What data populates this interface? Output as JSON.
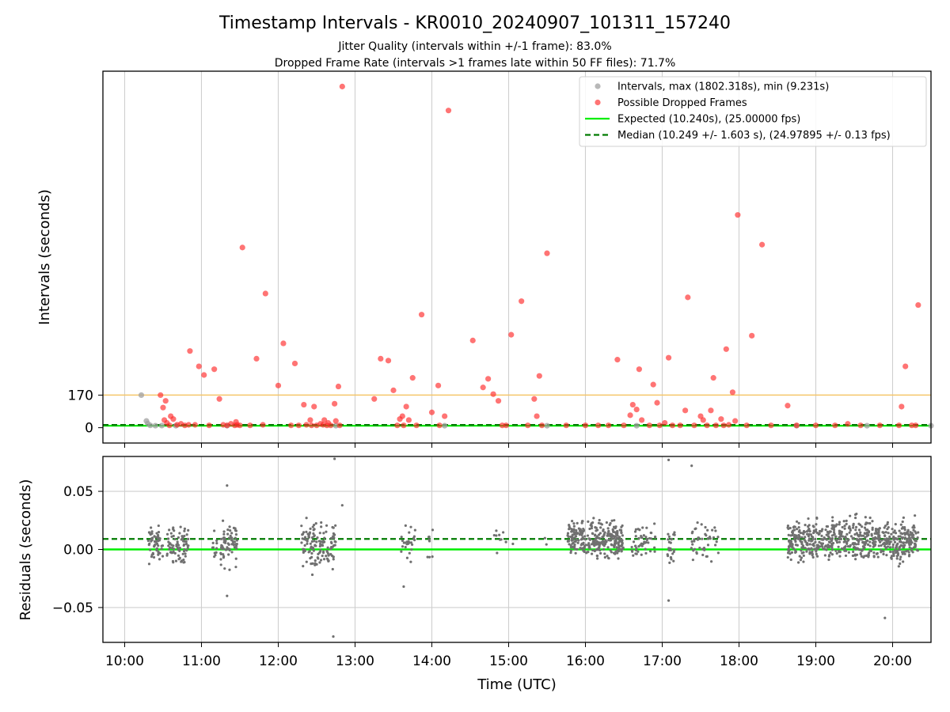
{
  "figure": {
    "title": "Timestamp Intervals - KR0010_20240907_101311_157240",
    "subtitle_1": "Jitter Quality (intervals within +/-1 frame): 83.0%",
    "subtitle_2": "Dropped Frame Rate (intervals >1 frames late within 50 FF files): 71.7%",
    "xlabel": "Time (UTC)"
  },
  "colors": {
    "intervals": "#a0a0a0",
    "dropped": "#ff2a2a",
    "expected": "#00ee00",
    "median": "#007a00",
    "threshold": "#f5c66a",
    "residual": "#707070",
    "grid": "#cfcfcf"
  },
  "chart_data": [
    {
      "type": "scatter",
      "ylabel": "Intervals (seconds)",
      "ytick_labels": [
        "0",
        "170"
      ],
      "yticks": [
        0,
        170
      ],
      "ylim": [
        -80,
        1860
      ],
      "xlim": [
        "09:43",
        "20:30"
      ],
      "xticks": [
        "10:00",
        "11:00",
        "12:00",
        "13:00",
        "14:00",
        "15:00",
        "16:00",
        "17:00",
        "18:00",
        "19:00",
        "20:00"
      ],
      "grid": "x",
      "legend_position": "upper-right",
      "legend": [
        "Intervals, max (1802.318s), min (9.231s)",
        "Possible Dropped Frames",
        "Expected (10.240s), (25.00000 fps)",
        "Median (10.249 +/- 1.603 s), (24.97895 +/- 0.13 fps)"
      ],
      "expected_value": 10.24,
      "median_value": 10.249,
      "threshold_value": 170,
      "series": [
        {
          "name": "Intervals, max (1802.318s), min (9.231s)",
          "points": [
            [
              "10:13",
              170
            ],
            [
              "10:17",
              35
            ],
            [
              "10:18",
              22
            ],
            [
              "10:20",
              12
            ],
            [
              "10:24",
              10.5
            ],
            [
              "10:29",
              11
            ],
            [
              "10:40",
              10.4
            ],
            [
              "11:20",
              10.3
            ],
            [
              "12:45",
              10.5
            ],
            [
              "14:10",
              10.3
            ],
            [
              "15:30",
              10.4
            ],
            [
              "16:40",
              10.3
            ],
            [
              "18:45",
              10.3
            ],
            [
              "19:40",
              10.4
            ],
            [
              "20:30",
              10.2
            ]
          ]
        },
        {
          "name": "Possible Dropped Frames",
          "points": [
            [
              "10:28",
              170
            ],
            [
              "10:30",
              105
            ],
            [
              "10:31",
              40
            ],
            [
              "10:32",
              140
            ],
            [
              "10:33",
              25
            ],
            [
              "10:35",
              12
            ],
            [
              "10:36",
              60
            ],
            [
              "10:38",
              45
            ],
            [
              "10:41",
              15
            ],
            [
              "10:44",
              20
            ],
            [
              "10:47",
              12
            ],
            [
              "10:50",
              15
            ],
            [
              "10:51",
              400
            ],
            [
              "10:55",
              15
            ],
            [
              "10:58",
              320
            ],
            [
              "11:02",
              275
            ],
            [
              "11:06",
              12
            ],
            [
              "11:10",
              305
            ],
            [
              "11:14",
              150
            ],
            [
              "11:17",
              15
            ],
            [
              "11:20",
              12
            ],
            [
              "11:23",
              20
            ],
            [
              "11:26",
              12
            ],
            [
              "11:28",
              15
            ],
            [
              "11:27",
              30
            ],
            [
              "11:30",
              12
            ],
            [
              "11:32",
              940
            ],
            [
              "11:38",
              12
            ],
            [
              "11:43",
              360
            ],
            [
              "11:50",
              700
            ],
            [
              "11:48",
              15
            ],
            [
              "12:00",
              220
            ],
            [
              "12:04",
              440
            ],
            [
              "12:10",
              12
            ],
            [
              "12:13",
              335
            ],
            [
              "12:16",
              12
            ],
            [
              "12:20",
              120
            ],
            [
              "12:22",
              15
            ],
            [
              "12:25",
              40
            ],
            [
              "12:26",
              12
            ],
            [
              "12:28",
              110
            ],
            [
              "12:30",
              12
            ],
            [
              "12:33",
              20
            ],
            [
              "12:35",
              15
            ],
            [
              "12:36",
              40
            ],
            [
              "12:38",
              12
            ],
            [
              "12:39",
              25
            ],
            [
              "12:41",
              12
            ],
            [
              "12:44",
              125
            ],
            [
              "12:45",
              35
            ],
            [
              "12:47",
              215
            ],
            [
              "12:48",
              12
            ],
            [
              "12:50",
              1780
            ],
            [
              "13:15",
              150
            ],
            [
              "13:20",
              360
            ],
            [
              "13:26",
              350
            ],
            [
              "13:30",
              195
            ],
            [
              "13:33",
              12
            ],
            [
              "13:35",
              45
            ],
            [
              "13:37",
              60
            ],
            [
              "13:38",
              12
            ],
            [
              "13:40",
              110
            ],
            [
              "13:42",
              40
            ],
            [
              "13:45",
              260
            ],
            [
              "13:48",
              12
            ],
            [
              "13:52",
              590
            ],
            [
              "14:00",
              80
            ],
            [
              "14:05",
              220
            ],
            [
              "14:06",
              12
            ],
            [
              "14:10",
              60
            ],
            [
              "14:13",
              1655
            ],
            [
              "14:32",
              455
            ],
            [
              "14:40",
              210
            ],
            [
              "14:44",
              255
            ],
            [
              "14:48",
              175
            ],
            [
              "14:52",
              140
            ],
            [
              "14:55",
              12
            ],
            [
              "14:58",
              12
            ],
            [
              "15:02",
              485
            ],
            [
              "15:10",
              660
            ],
            [
              "15:15",
              12
            ],
            [
              "15:20",
              150
            ],
            [
              "15:22",
              60
            ],
            [
              "15:24",
              270
            ],
            [
              "15:26",
              12
            ],
            [
              "15:30",
              910
            ],
            [
              "15:45",
              12
            ],
            [
              "16:00",
              12
            ],
            [
              "16:10",
              12
            ],
            [
              "16:18",
              12
            ],
            [
              "16:25",
              355
            ],
            [
              "16:30",
              12
            ],
            [
              "16:35",
              65
            ],
            [
              "16:37",
              120
            ],
            [
              "16:40",
              95
            ],
            [
              "16:42",
              305
            ],
            [
              "16:44",
              40
            ],
            [
              "16:50",
              12
            ],
            [
              "16:53",
              225
            ],
            [
              "16:56",
              130
            ],
            [
              "16:58",
              12
            ],
            [
              "17:02",
              25
            ],
            [
              "17:05",
              365
            ],
            [
              "17:08",
              12
            ],
            [
              "17:14",
              12
            ],
            [
              "17:18",
              90
            ],
            [
              "17:20",
              680
            ],
            [
              "17:25",
              12
            ],
            [
              "17:30",
              60
            ],
            [
              "17:32",
              40
            ],
            [
              "17:35",
              12
            ],
            [
              "17:38",
              90
            ],
            [
              "17:40",
              260
            ],
            [
              "17:42",
              12
            ],
            [
              "17:46",
              45
            ],
            [
              "17:48",
              12
            ],
            [
              "17:50",
              410
            ],
            [
              "17:52",
              15
            ],
            [
              "17:55",
              185
            ],
            [
              "17:57",
              35
            ],
            [
              "17:59",
              1110
            ],
            [
              "18:06",
              12
            ],
            [
              "18:10",
              480
            ],
            [
              "18:18",
              955
            ],
            [
              "18:25",
              12
            ],
            [
              "18:38",
              115
            ],
            [
              "18:45",
              12
            ],
            [
              "19:00",
              12
            ],
            [
              "19:15",
              12
            ],
            [
              "19:25",
              20
            ],
            [
              "19:35",
              12
            ],
            [
              "19:50",
              12
            ],
            [
              "20:05",
              12
            ],
            [
              "20:07",
              110
            ],
            [
              "20:10",
              320
            ],
            [
              "20:15",
              12
            ],
            [
              "20:18",
              12
            ],
            [
              "20:20",
              640
            ]
          ]
        }
      ]
    },
    {
      "type": "scatter",
      "ylabel": "Residuals (seconds)",
      "ytick_labels": [
        "−0.05",
        "0.00",
        "0.05"
      ],
      "yticks": [
        -0.05,
        0.0,
        0.05
      ],
      "ylim": [
        -0.08,
        0.08
      ],
      "xlim": [
        "09:43",
        "20:30"
      ],
      "xticks": [
        "10:00",
        "11:00",
        "12:00",
        "13:00",
        "14:00",
        "15:00",
        "16:00",
        "17:00",
        "18:00",
        "19:00",
        "20:00"
      ],
      "xtick_labels": [
        "10:00",
        "11:00",
        "12:00",
        "13:00",
        "14:00",
        "15:00",
        "16:00",
        "17:00",
        "18:00",
        "19:00",
        "20:00"
      ],
      "grid": "both",
      "expected_value": 0.0,
      "median_value": 0.009,
      "residual_clusters": [
        {
          "start": "10:18",
          "end": "10:30",
          "center": 0.004,
          "spread": 0.022,
          "count": 60
        },
        {
          "start": "10:33",
          "end": "10:50",
          "center": 0.004,
          "spread": 0.022,
          "count": 80
        },
        {
          "start": "11:08",
          "end": "11:12",
          "center": 0.0,
          "spread": 0.02,
          "count": 12
        },
        {
          "start": "11:15",
          "end": "11:28",
          "center": 0.006,
          "spread": 0.028,
          "count": 70
        },
        {
          "start": "12:18",
          "end": "12:34",
          "center": 0.004,
          "spread": 0.03,
          "count": 80
        },
        {
          "start": "12:34",
          "end": "12:45",
          "center": 0.004,
          "spread": 0.026,
          "count": 50
        },
        {
          "start": "13:35",
          "end": "13:47",
          "center": 0.006,
          "spread": 0.022,
          "count": 25
        },
        {
          "start": "13:56",
          "end": "14:01",
          "center": 0.008,
          "spread": 0.02,
          "count": 8
        },
        {
          "start": "14:48",
          "end": "15:05",
          "center": 0.01,
          "spread": 0.018,
          "count": 10
        },
        {
          "start": "15:28",
          "end": "15:30",
          "center": 0.0,
          "spread": 0.02,
          "count": 2
        },
        {
          "start": "15:46",
          "end": "16:30",
          "center": 0.008,
          "spread": 0.022,
          "count": 300
        },
        {
          "start": "16:36",
          "end": "16:55",
          "center": 0.006,
          "spread": 0.024,
          "count": 50
        },
        {
          "start": "17:04",
          "end": "17:10",
          "center": 0.004,
          "spread": 0.026,
          "count": 25
        },
        {
          "start": "17:22",
          "end": "17:45",
          "center": 0.006,
          "spread": 0.024,
          "count": 45
        },
        {
          "start": "18:38",
          "end": "20:20",
          "center": 0.008,
          "spread": 0.026,
          "count": 650
        }
      ],
      "outliers": [
        [
          "12:43",
          -0.075
        ],
        [
          "12:44",
          0.078
        ],
        [
          "17:05",
          0.077
        ],
        [
          "17:05",
          -0.044
        ],
        [
          "17:23",
          0.072
        ],
        [
          "11:20",
          -0.04
        ],
        [
          "11:20",
          0.055
        ],
        [
          "19:54",
          -0.059
        ],
        [
          "13:38",
          -0.032
        ],
        [
          "12:50",
          0.038
        ]
      ]
    }
  ]
}
